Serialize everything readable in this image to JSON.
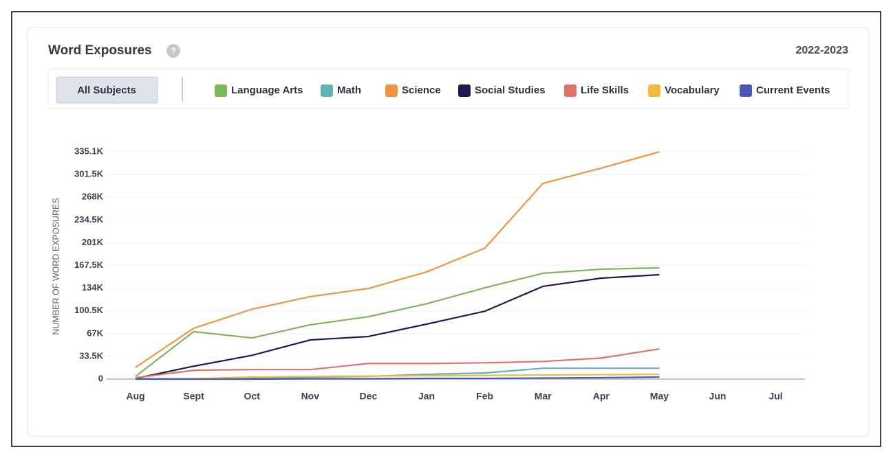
{
  "chart_data": {
    "type": "line",
    "title": "Word Exposures",
    "period": "2022-2023",
    "filter_button": "All Subjects",
    "y_label": "NUMBER OF WORD EXPOSURES",
    "categories": [
      "Aug",
      "Sept",
      "Oct",
      "Nov",
      "Dec",
      "Jan",
      "Feb",
      "Mar",
      "Apr",
      "May",
      "Jun",
      "Jul"
    ],
    "ylim": [
      0,
      335100
    ],
    "yticks": [
      0,
      {
        "value": 33500,
        "label": "33.5K"
      },
      {
        "value": 67000,
        "label": "67K"
      },
      {
        "value": 100500,
        "label": "100.5K"
      },
      {
        "value": 134000,
        "label": "134K"
      },
      {
        "value": 167500,
        "label": "167.5K"
      },
      {
        "value": 201000,
        "label": "201K"
      },
      {
        "value": 234500,
        "label": "234.5K"
      },
      {
        "value": 268000,
        "label": "268K"
      },
      {
        "value": 301500,
        "label": "301.5K"
      },
      {
        "value": 335100,
        "label": "335.1K"
      }
    ],
    "grid": true,
    "series": [
      {
        "name": "Language Arts",
        "color": "#7cb85a",
        "values": [
          4000,
          70000,
          60700,
          80000,
          92000,
          111000,
          134600,
          156000,
          162000,
          164000,
          null,
          null
        ]
      },
      {
        "name": "Math",
        "color": "#5fb4b4",
        "values": [
          500,
          500,
          1500,
          3000,
          4000,
          7000,
          9000,
          16000,
          16000,
          16000,
          null,
          null
        ]
      },
      {
        "name": "Science",
        "color": "#f0953f",
        "values": [
          17200,
          75000,
          103000,
          121500,
          133600,
          158000,
          193000,
          288500,
          311000,
          335000,
          null,
          null
        ]
      },
      {
        "name": "Social Studies",
        "color": "#1d1a4f",
        "values": [
          1000,
          19000,
          35000,
          57700,
          62800,
          81000,
          100000,
          136700,
          148800,
          153900,
          null,
          null
        ]
      },
      {
        "name": "Life Skills",
        "color": "#e0716b",
        "values": [
          2000,
          13000,
          14000,
          14000,
          23000,
          23000,
          24000,
          26000,
          31000,
          44500,
          null,
          null
        ]
      },
      {
        "name": "Vocabulary",
        "color": "#f2b93b",
        "values": [
          0,
          500,
          3000,
          4000,
          4500,
          5000,
          5500,
          6000,
          6500,
          7000,
          null,
          null
        ]
      },
      {
        "name": "Current Events",
        "color": "#4a57b5",
        "values": [
          0,
          0,
          0,
          500,
          500,
          1000,
          1000,
          1500,
          2000,
          3000,
          null,
          null
        ]
      }
    ]
  }
}
